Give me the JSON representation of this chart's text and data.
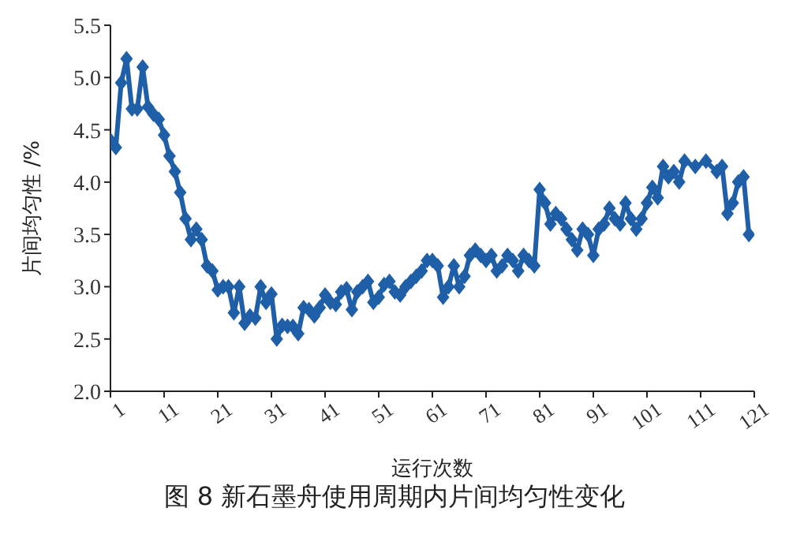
{
  "chart_data": {
    "type": "line",
    "title": "图 8 新石墨舟使用周期内片间均匀性变化",
    "xlabel": "运行次数",
    "ylabel": "片间均匀性 /%",
    "x": [
      1,
      2,
      3,
      4,
      5,
      6,
      7,
      8,
      9,
      10,
      11,
      12,
      13,
      14,
      15,
      16,
      17,
      18,
      19,
      20,
      21,
      22,
      23,
      24,
      25,
      26,
      27,
      28,
      29,
      30,
      31,
      32,
      33,
      34,
      35,
      36,
      37,
      38,
      39,
      40,
      41,
      42,
      43,
      44,
      45,
      46,
      47,
      48,
      49,
      50,
      51,
      52,
      53,
      54,
      55,
      56,
      57,
      58,
      59,
      60,
      61,
      62,
      63,
      64,
      65,
      66,
      67,
      68,
      69,
      70,
      71,
      72,
      73,
      74,
      75,
      76,
      77,
      78,
      79,
      80,
      81,
      82,
      83,
      84,
      85,
      86,
      87,
      88,
      89,
      90,
      91,
      92,
      93,
      94,
      95,
      96,
      97,
      98,
      99,
      100,
      101,
      102,
      103,
      104,
      105,
      106,
      107,
      108,
      110,
      112,
      114,
      115,
      116,
      117,
      118,
      119,
      120
    ],
    "series": [
      {
        "color": "#1f5fa8",
        "values": [
          4.4,
          4.33,
          4.95,
          5.18,
          4.7,
          4.7,
          5.1,
          4.72,
          4.65,
          4.6,
          4.45,
          4.25,
          4.1,
          3.9,
          3.65,
          3.45,
          3.55,
          3.45,
          3.2,
          3.15,
          2.97,
          3.0,
          3.0,
          2.75,
          3.0,
          2.65,
          2.72,
          2.7,
          3.0,
          2.85,
          2.93,
          2.5,
          2.63,
          2.62,
          2.62,
          2.55,
          2.8,
          2.78,
          2.72,
          2.8,
          2.92,
          2.85,
          2.83,
          2.95,
          2.98,
          2.78,
          2.95,
          3.0,
          3.05,
          2.85,
          2.9,
          3.02,
          3.05,
          2.95,
          2.92,
          3.0,
          3.05,
          3.1,
          3.15,
          3.25,
          3.25,
          3.2,
          2.9,
          3.0,
          3.2,
          3.0,
          3.1,
          3.3,
          3.35,
          3.3,
          3.25,
          3.3,
          3.15,
          3.2,
          3.3,
          3.25,
          3.15,
          3.3,
          3.25,
          3.2,
          3.93,
          3.8,
          3.6,
          3.7,
          3.65,
          3.55,
          3.45,
          3.35,
          3.55,
          3.5,
          3.3,
          3.55,
          3.6,
          3.75,
          3.65,
          3.6,
          3.8,
          3.65,
          3.55,
          3.65,
          3.8,
          3.95,
          3.85,
          4.15,
          4.05,
          4.1,
          4.0,
          4.2,
          4.15,
          4.2,
          4.1,
          4.15,
          3.7,
          3.8,
          4.0,
          4.05,
          3.5
        ]
      }
    ],
    "xlim": [
      1,
      121
    ],
    "xticks": [
      1,
      11,
      21,
      31,
      41,
      51,
      61,
      71,
      81,
      91,
      101,
      111,
      121
    ],
    "ylim": [
      2.0,
      5.5
    ],
    "yticks": [
      {
        "value": 2,
        "label": "2.0"
      },
      {
        "value": 2.5,
        "label": "2.5"
      },
      {
        "value": 3,
        "label": "3.0"
      },
      {
        "value": 3.5,
        "label": "3.5"
      },
      {
        "value": 4,
        "label": "4.0"
      },
      {
        "value": 4.5,
        "label": "4.5"
      },
      {
        "value": 5,
        "label": "5.0"
      },
      {
        "value": 5.5,
        "label": "5.5"
      }
    ],
    "marker": "diamond",
    "line_style": "solid"
  }
}
